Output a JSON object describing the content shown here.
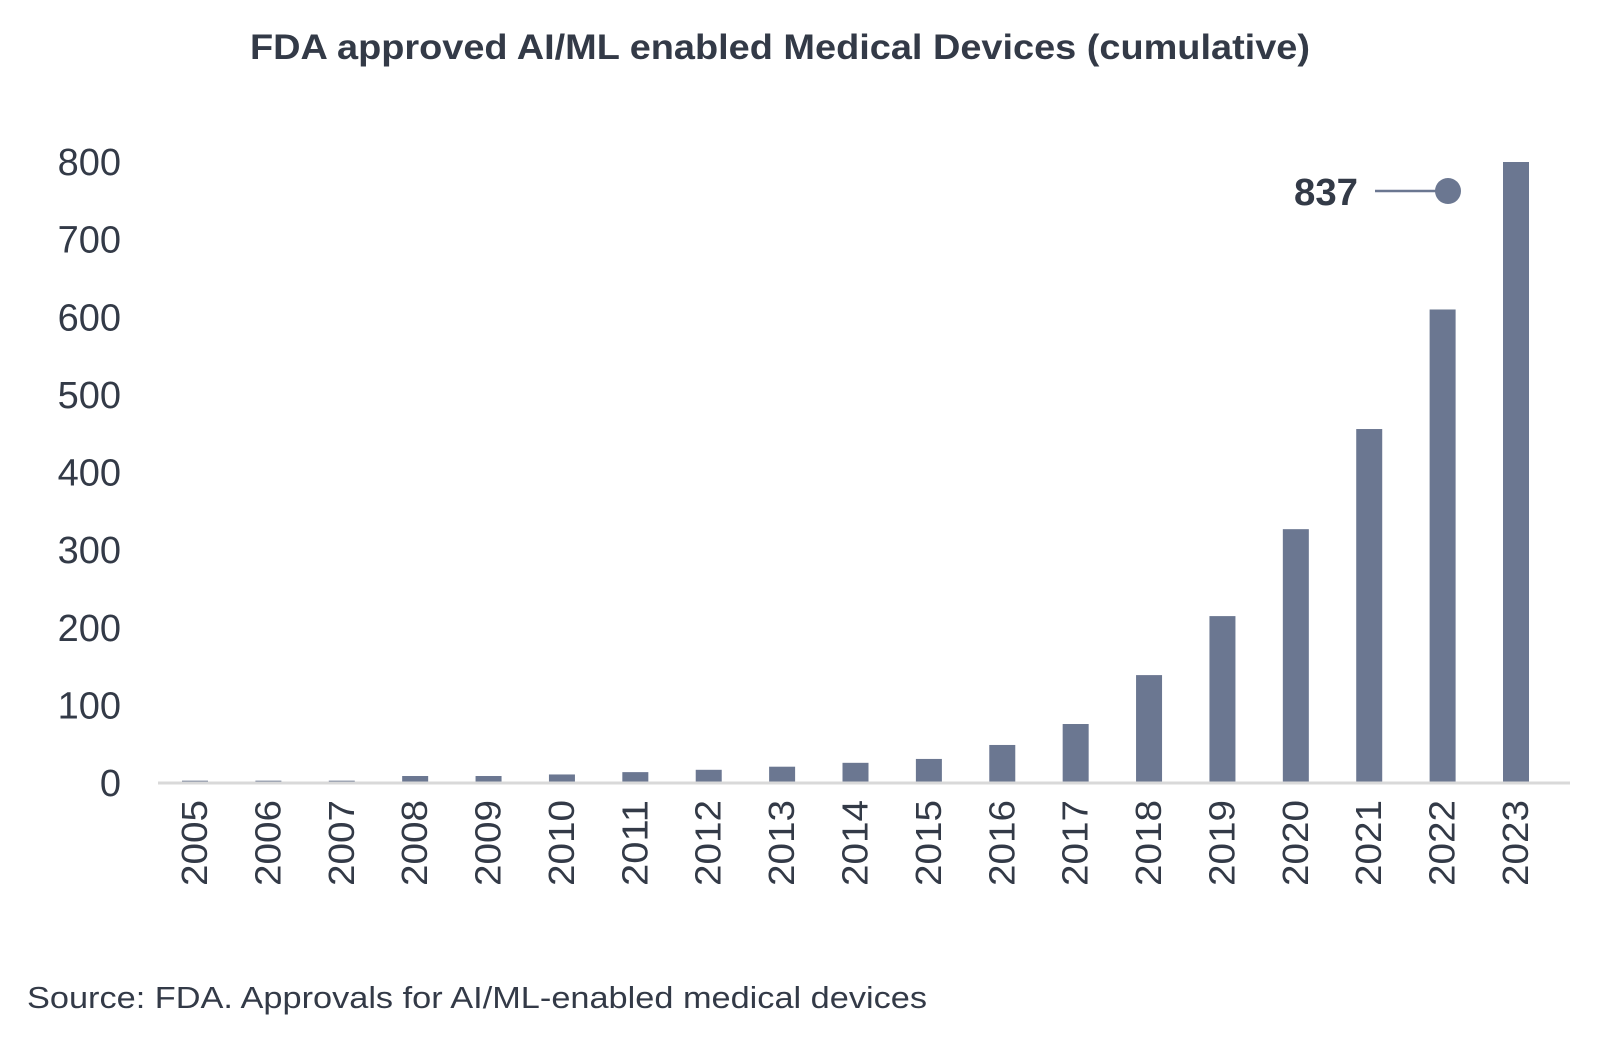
{
  "chart_data": {
    "type": "bar",
    "title": "FDA approved AI/ML enabled Medical Devices (cumulative)",
    "xlabel": "",
    "ylabel": "",
    "ylim": [
      0,
      800
    ],
    "yticks": [
      "0",
      "100",
      "200",
      "300",
      "400",
      "500",
      "600",
      "700",
      "800"
    ],
    "grid": false,
    "categories": [
      "2005",
      "2006",
      "2007",
      "2008",
      "2009",
      "2010",
      "2011",
      "2012",
      "2013",
      "2014",
      "2015",
      "2016",
      "2017",
      "2018",
      "2019",
      "2020",
      "2021",
      "2022",
      "2023"
    ],
    "values": [
      3,
      3,
      3,
      9,
      9,
      11,
      14,
      17,
      21,
      26,
      31,
      49,
      76,
      139,
      215,
      327,
      456,
      610,
      837
    ],
    "annotation": {
      "label": "837",
      "category": "2023"
    },
    "bar_color": "#6b7791",
    "axis_color": "#d9d9d9",
    "text_color": "#333a47"
  },
  "source": "Source: FDA. Approvals for AI/ML-enabled medical devices"
}
